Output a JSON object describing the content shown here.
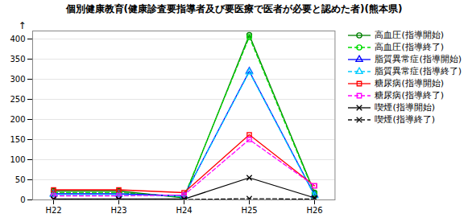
{
  "chart_data": {
    "type": "line",
    "title": "個別健康教育(健康診査要指導者及び要医療で医者が必要と認めた者)(熊本県)",
    "categories": [
      "H22",
      "H23",
      "H24",
      "H25",
      "H26"
    ],
    "series": [
      {
        "name": "高血圧(指導開始)",
        "color": "#008000",
        "values": [
          22,
          22,
          5,
          410,
          18
        ],
        "marker": "circle",
        "line_style": "solid"
      },
      {
        "name": "高血圧(指導終了)",
        "color": "#00dd00",
        "values": [
          18,
          18,
          8,
          405,
          15
        ],
        "marker": "circle",
        "line_style": "dashed"
      },
      {
        "name": "脂質異常症(指導開始)",
        "color": "#0000ff",
        "values": [
          15,
          15,
          10,
          320,
          12
        ],
        "marker": "triangle",
        "line_style": "solid"
      },
      {
        "name": "脂質異常症(指導終了)",
        "color": "#00ccff",
        "values": [
          13,
          13,
          9,
          318,
          10
        ],
        "marker": "triangle",
        "line_style": "dashed"
      },
      {
        "name": "糖尿病(指導開始)",
        "color": "#ff0000",
        "values": [
          25,
          25,
          18,
          162,
          35
        ],
        "marker": "square",
        "line_style": "solid"
      },
      {
        "name": "糖尿病(指導終了)",
        "color": "#ff00ff",
        "values": [
          10,
          10,
          12,
          150,
          35
        ],
        "marker": "square",
        "line_style": "dashed"
      },
      {
        "name": "喫煙(指導開始)",
        "color": "#000000",
        "values": [
          2,
          2,
          2,
          55,
          5
        ],
        "marker": "x",
        "line_style": "solid"
      },
      {
        "name": "喫煙(指導終了)",
        "color": "#111111",
        "values": [
          1,
          1,
          1,
          3,
          2
        ],
        "marker": "x",
        "line_style": "dashed"
      }
    ],
    "annotations": [
      {
        "text": "↑"
      }
    ],
    "ylim": [
      0,
      420
    ],
    "yticks": [
      0,
      50,
      100,
      150,
      200,
      250,
      300,
      350,
      400
    ],
    "grid": true,
    "legend": "right"
  }
}
